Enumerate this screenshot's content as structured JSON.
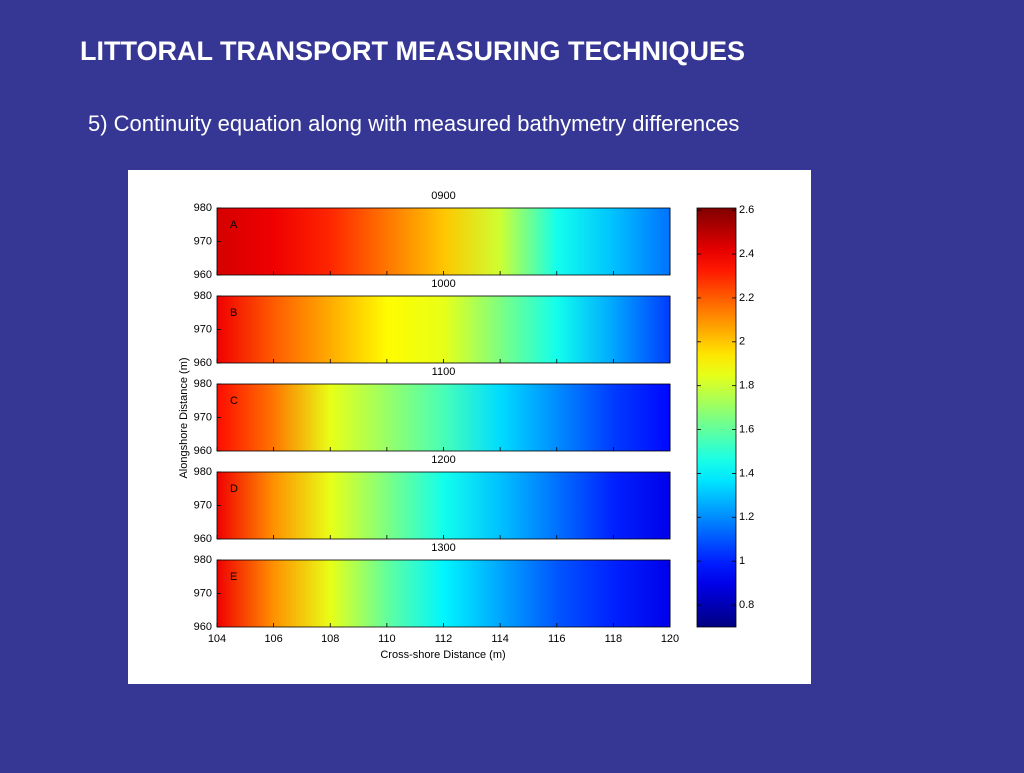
{
  "header": {
    "title": "LITTORAL TRANSPORT MEASURING TECHNIQUES",
    "subtitle": "5) Continuity equation along with measured bathymetry differences"
  },
  "chart_data": {
    "type": "heatmap",
    "xlabel": "Cross-shore Distance (m)",
    "ylabel": "Alongshore Distance (m)",
    "x": [
      104,
      106,
      108,
      110,
      112,
      114,
      116,
      118,
      120
    ],
    "xlim": [
      104,
      120
    ],
    "xticks": [
      104,
      106,
      108,
      110,
      112,
      114,
      116,
      118,
      120
    ],
    "ylim": [
      960,
      980
    ],
    "yticks": [
      960,
      970,
      980
    ],
    "colorbar": {
      "lim": [
        0.7,
        2.61
      ],
      "ticks": [
        0.8,
        1,
        1.2,
        1.4,
        1.6,
        1.8,
        2,
        2.2,
        2.4,
        2.6
      ]
    },
    "panels": [
      {
        "title": "0900",
        "label": "A",
        "values": [
          2.45,
          2.4,
          2.3,
          2.15,
          2.0,
          1.8,
          1.45,
          1.3,
          1.15
        ]
      },
      {
        "title": "1000",
        "label": "B",
        "values": [
          2.4,
          2.2,
          2.05,
          1.9,
          1.85,
          1.65,
          1.45,
          1.25,
          1.05
        ]
      },
      {
        "title": "1100",
        "label": "C",
        "values": [
          2.35,
          2.15,
          1.85,
          1.7,
          1.55,
          1.35,
          1.2,
          1.05,
          0.95
        ]
      },
      {
        "title": "1200",
        "label": "D",
        "values": [
          2.4,
          2.1,
          1.85,
          1.65,
          1.45,
          1.3,
          1.15,
          1.0,
          0.9
        ]
      },
      {
        "title": "1300",
        "label": "E",
        "values": [
          2.4,
          2.1,
          1.85,
          1.6,
          1.4,
          1.25,
          1.1,
          1.0,
          0.9
        ]
      }
    ]
  }
}
